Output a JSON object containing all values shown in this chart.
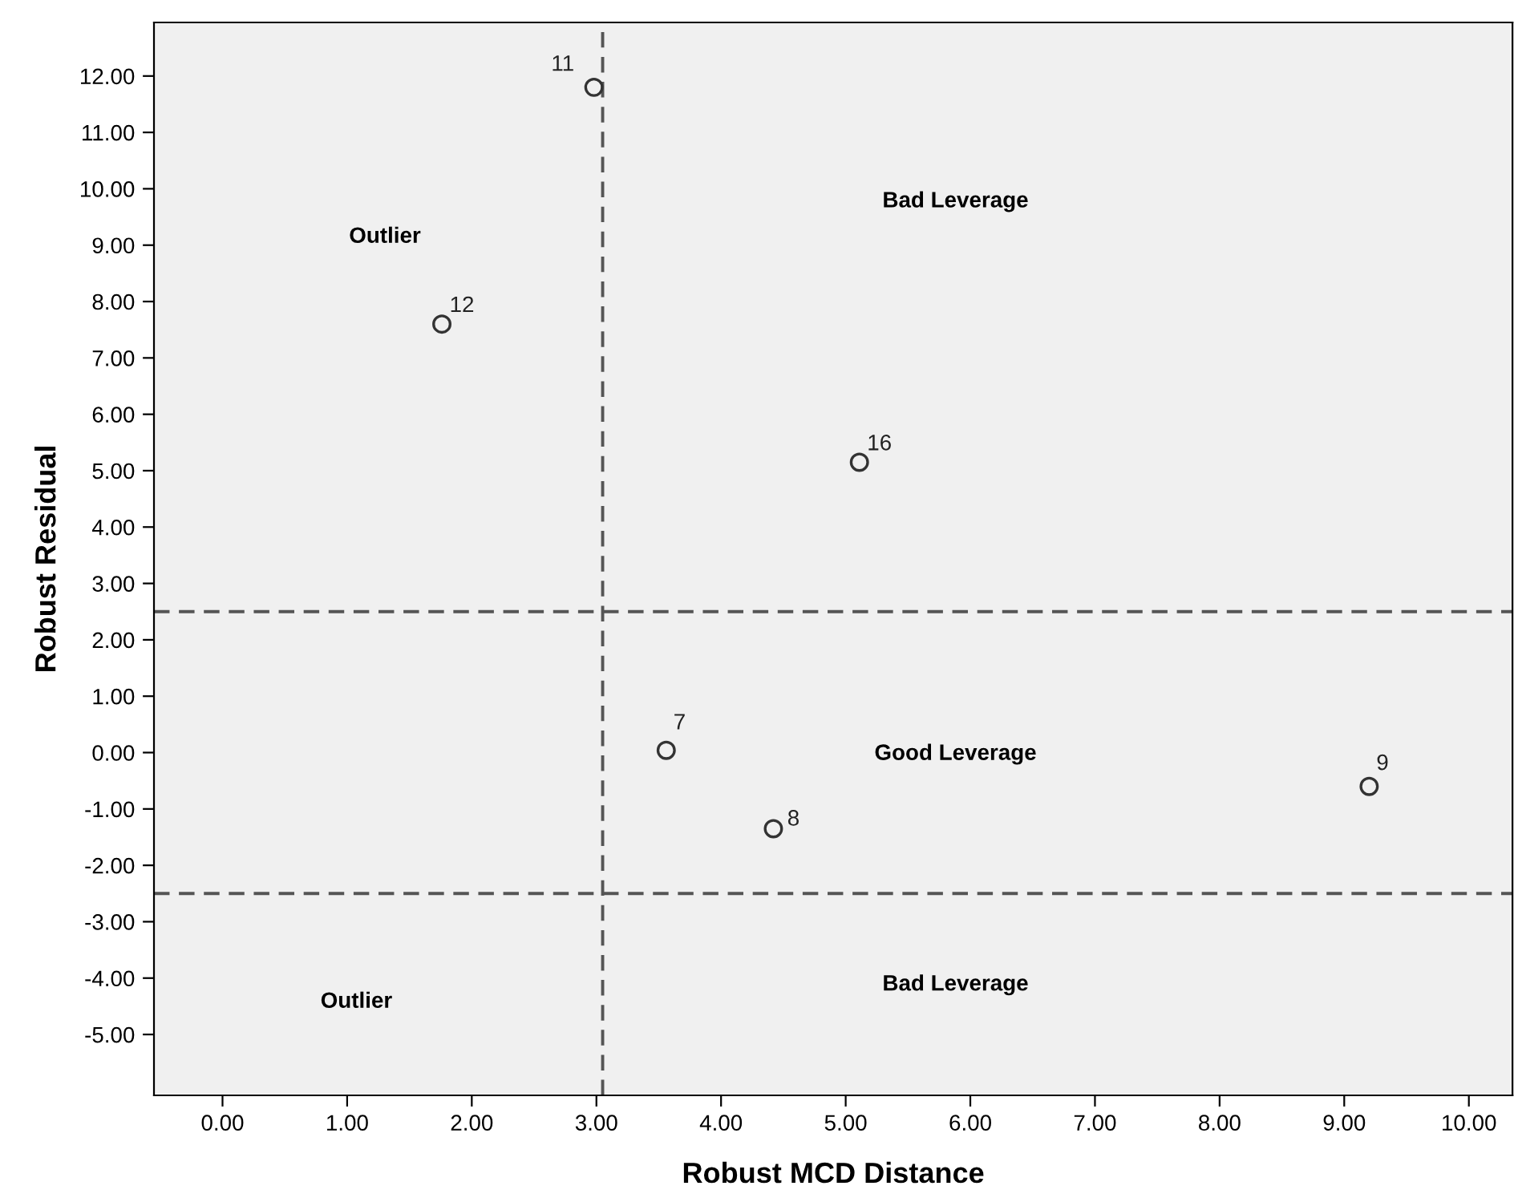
{
  "chart_data": {
    "type": "scatter",
    "xlabel": "Robust MCD Distance",
    "ylabel": "Robust Residual",
    "x": [
      2.98,
      1.76,
      5.11,
      3.56,
      4.42,
      9.2
    ],
    "values": [
      11.8,
      7.6,
      5.15,
      0.04,
      -1.35,
      -0.6
    ],
    "color": "#333333",
    "marker": "circle",
    "grid": false,
    "xlim": [
      -0.55,
      10.35
    ],
    "ylim": [
      -6.08,
      12.95
    ],
    "xticks": [
      {
        "value": 0,
        "label": "0.00"
      },
      {
        "value": 1,
        "label": "1.00"
      },
      {
        "value": 2,
        "label": "2.00"
      },
      {
        "value": 3,
        "label": "3.00"
      },
      {
        "value": 4,
        "label": "4.00"
      },
      {
        "value": 5,
        "label": "5.00"
      },
      {
        "value": 6,
        "label": "6.00"
      },
      {
        "value": 7,
        "label": "7.00"
      },
      {
        "value": 8,
        "label": "8.00"
      },
      {
        "value": 9,
        "label": "9.00"
      },
      {
        "value": 10,
        "label": "10.00"
      }
    ],
    "yticks": [
      {
        "value": -5,
        "label": "-5.00"
      },
      {
        "value": -4,
        "label": "-4.00"
      },
      {
        "value": -3,
        "label": "-3.00"
      },
      {
        "value": -2,
        "label": "-2.00"
      },
      {
        "value": -1,
        "label": "-1.00"
      },
      {
        "value": 0,
        "label": "0.00"
      },
      {
        "value": 1,
        "label": "1.00"
      },
      {
        "value": 2,
        "label": "2.00"
      },
      {
        "value": 3,
        "label": "3.00"
      },
      {
        "value": 4,
        "label": "4.00"
      },
      {
        "value": 5,
        "label": "5.00"
      },
      {
        "value": 6,
        "label": "6.00"
      },
      {
        "value": 7,
        "label": "7.00"
      },
      {
        "value": 8,
        "label": "8.00"
      },
      {
        "value": 9,
        "label": "9.00"
      },
      {
        "value": 10,
        "label": "10.00"
      },
      {
        "value": 11,
        "label": "11.00"
      },
      {
        "value": 12,
        "label": "12.00"
      }
    ],
    "ref_lines": [
      {
        "axis": "x",
        "value": 3.05,
        "line_style": "dashed",
        "color": "#555555"
      },
      {
        "axis": "y",
        "value": 2.5,
        "line_style": "dashed",
        "color": "#555555"
      },
      {
        "axis": "y",
        "value": -2.5,
        "line_style": "dashed",
        "color": "#555555"
      }
    ],
    "annotations": [
      "Outlier",
      "Bad Leverage",
      "Good Leverage",
      "Outlier",
      "Bad Leverage",
      {
        "text": "11",
        "x": 2.98,
        "y": 11.8
      },
      {
        "text": "12",
        "x": 1.76,
        "y": 7.6
      },
      {
        "text": "16",
        "x": 5.11,
        "y": 5.15
      },
      {
        "text": "7",
        "x": 3.56,
        "y": 0.04
      },
      {
        "text": "8",
        "x": 4.42,
        "y": -1.35
      },
      {
        "text": "9",
        "x": 9.2,
        "y": -0.6
      }
    ]
  }
}
